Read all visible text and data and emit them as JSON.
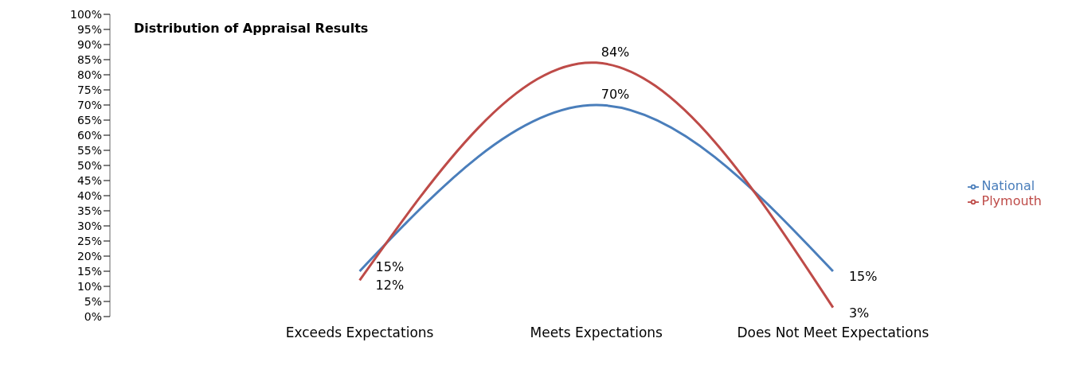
{
  "chart_data": {
    "type": "line",
    "title": "Distribution of Appraisal Results",
    "categories": [
      "Exceeds Expectations",
      "Meets Expectations",
      "Does Not Meet Expectations"
    ],
    "series": [
      {
        "name": "National",
        "color": "#4a7ebb",
        "values": [
          15,
          70,
          15
        ],
        "value_labels": [
          "15%",
          "70%",
          "15%"
        ]
      },
      {
        "name": "Plymouth",
        "color": "#be4b48",
        "values": [
          12,
          84,
          3
        ],
        "value_labels": [
          "12%",
          "84%",
          "3%"
        ]
      }
    ],
    "ylim": [
      0,
      100
    ],
    "yticks": [
      {
        "value": 0,
        "label": "0%"
      },
      {
        "value": 5,
        "label": "5%"
      },
      {
        "value": 10,
        "label": "10%"
      },
      {
        "value": 15,
        "label": "15%"
      },
      {
        "value": 20,
        "label": "20%"
      },
      {
        "value": 25,
        "label": "25%"
      },
      {
        "value": 30,
        "label": "30%"
      },
      {
        "value": 35,
        "label": "35%"
      },
      {
        "value": 40,
        "label": "40%"
      },
      {
        "value": 45,
        "label": "45%"
      },
      {
        "value": 50,
        "label": "50%"
      },
      {
        "value": 55,
        "label": "55%"
      },
      {
        "value": 60,
        "label": "60%"
      },
      {
        "value": 65,
        "label": "65%"
      },
      {
        "value": 70,
        "label": "70%"
      },
      {
        "value": 75,
        "label": "75%"
      },
      {
        "value": 80,
        "label": "80%"
      },
      {
        "value": 85,
        "label": "85%"
      },
      {
        "value": 90,
        "label": "90%"
      },
      {
        "value": 95,
        "label": "95%"
      },
      {
        "value": 100,
        "label": "100%"
      }
    ],
    "grid": false,
    "legend": "right",
    "marker": "none",
    "line_style": "solid"
  }
}
